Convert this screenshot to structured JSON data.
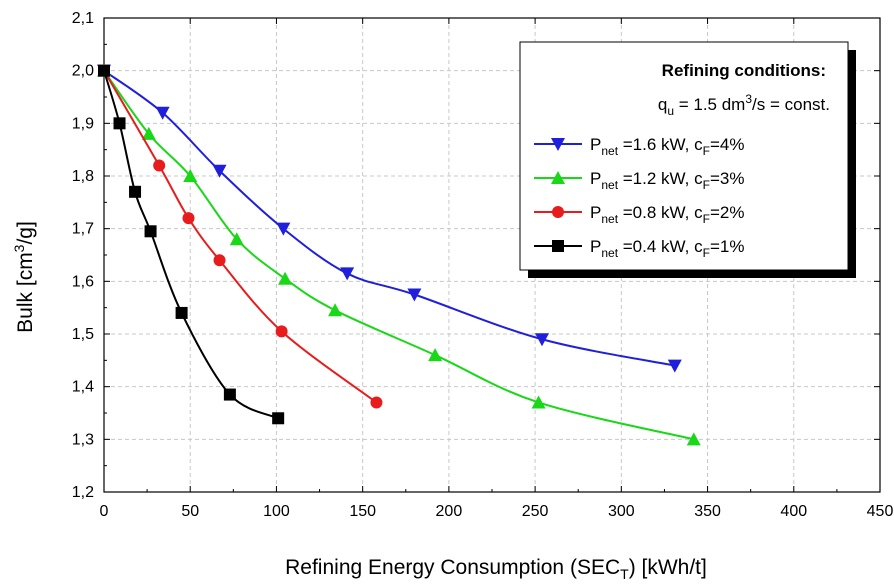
{
  "chart_data": {
    "type": "line",
    "xlabel": "Refining Energy Consumption (SEC",
    "xlabel_sub": "T",
    "xlabel_tail": ") [kWh/t]",
    "ylabel": "Bulk [cm",
    "ylabel_sup": "3",
    "ylabel_tail": "/g]",
    "xlim": [
      0,
      450
    ],
    "ylim": [
      1.2,
      2.1
    ],
    "x_ticks": [
      "0",
      "50",
      "100",
      "150",
      "200",
      "250",
      "300",
      "350",
      "400",
      "450"
    ],
    "y_ticks": [
      "1,2",
      "1,3",
      "1,4",
      "1,5",
      "1,6",
      "1,7",
      "1,8",
      "1,9",
      "2,0",
      "2,1"
    ],
    "grid": true,
    "legend_position": "top-right",
    "legend": {
      "title": "Refining conditions:",
      "condition": {
        "prefix": "q",
        "sub": "u",
        "mid": " = 1.5 dm",
        "sup": "3",
        "tail": "/s = const."
      }
    },
    "series": [
      {
        "name": "P_net =1.6 kW, c_F=4%",
        "label_main": "P",
        "label_sub1": "net",
        "label_mid": " =1.6 kW, c",
        "label_sub2": "F",
        "label_tail": "=4%",
        "color": "#1f1fdc",
        "marker": "triangle-down",
        "x": [
          0,
          34,
          67,
          104,
          141,
          180,
          254,
          331
        ],
        "y": [
          2.0,
          1.92,
          1.81,
          1.7,
          1.615,
          1.575,
          1.49,
          1.44
        ]
      },
      {
        "name": "P_net =1.2 kW, c_F=3%",
        "label_main": "P",
        "label_sub1": "net",
        "label_mid": " =1.2 kW, c",
        "label_sub2": "F",
        "label_tail": "=3%",
        "color": "#18d818",
        "marker": "triangle-up",
        "x": [
          0,
          26,
          50,
          77,
          105,
          134,
          192,
          252,
          342
        ],
        "y": [
          2.0,
          1.88,
          1.8,
          1.68,
          1.605,
          1.545,
          1.46,
          1.37,
          1.3
        ]
      },
      {
        "name": "P_net =0.8 kW, c_F=2%",
        "label_main": "P",
        "label_sub1": "net",
        "label_mid": " =0.8 kW, c",
        "label_sub2": "F",
        "label_tail": "=2%",
        "color": "#e81c1c",
        "marker": "circle",
        "x": [
          0,
          32,
          49,
          67,
          103,
          158
        ],
        "y": [
          2.0,
          1.82,
          1.72,
          1.64,
          1.505,
          1.37
        ]
      },
      {
        "name": "P_net =0.4 kW, c_F=1%",
        "label_main": "P",
        "label_sub1": "net",
        "label_mid": " =0.4 kW, c",
        "label_sub2": "F",
        "label_tail": "=1%",
        "color": "#000000",
        "marker": "square",
        "x": [
          0,
          9,
          18,
          27,
          45,
          73,
          101
        ],
        "y": [
          2.0,
          1.9,
          1.77,
          1.695,
          1.54,
          1.385,
          1.34
        ]
      }
    ]
  }
}
